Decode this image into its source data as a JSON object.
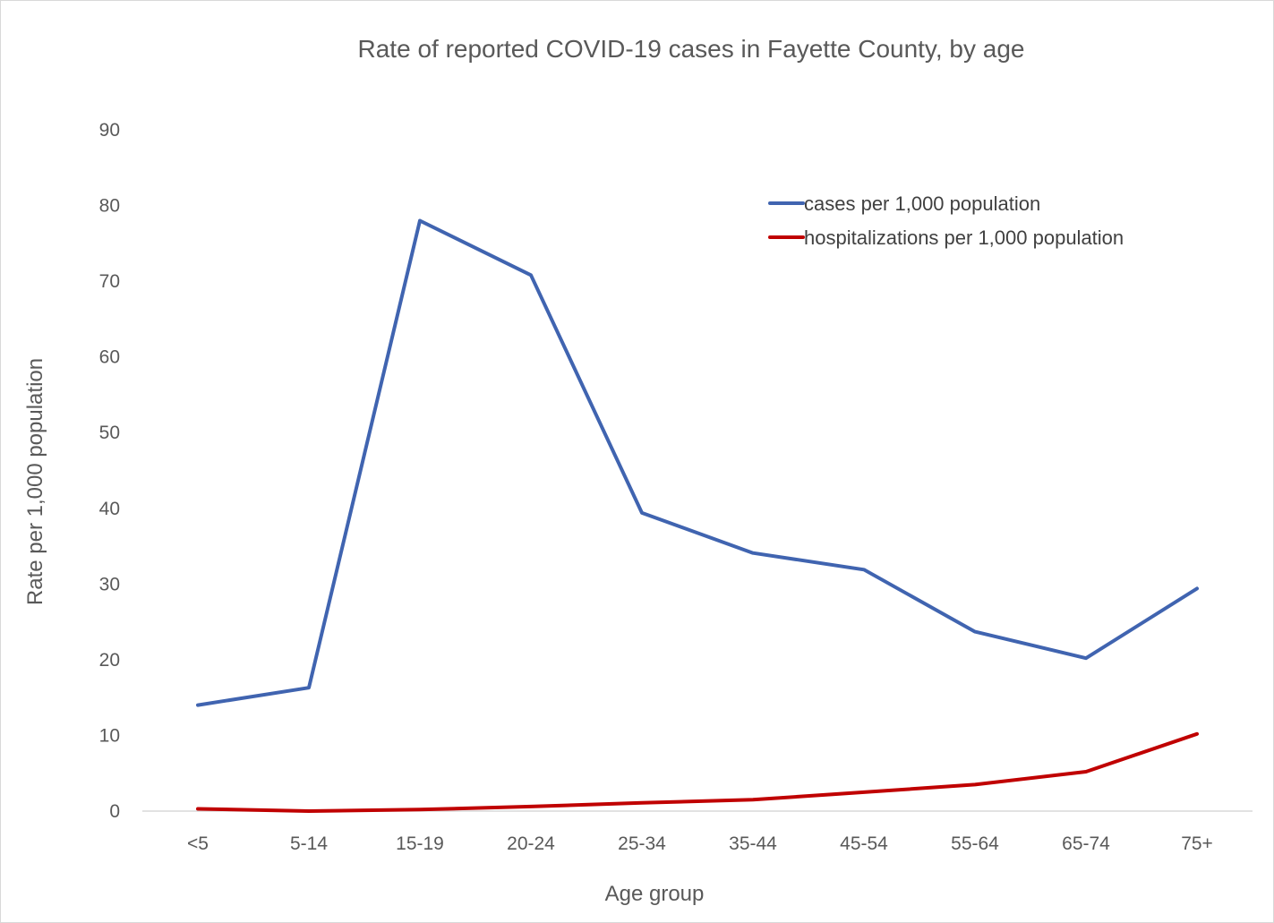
{
  "chart_data": {
    "type": "line",
    "title": "Rate of reported COVID-19 cases in Fayette County, by age",
    "xlabel": "Age group",
    "ylabel": "Rate per 1,000 population",
    "ylim": [
      0,
      90
    ],
    "yticks": [
      "0",
      "10",
      "20",
      "30",
      "40",
      "50",
      "60",
      "70",
      "80",
      "90"
    ],
    "grid": false,
    "legend_position": "top-right",
    "categories": [
      "<5",
      "5-14",
      "15-19",
      "20-24",
      "25-34",
      "35-44",
      "45-54",
      "55-64",
      "65-74",
      "75+"
    ],
    "series": [
      {
        "name": "cases per 1,000 population",
        "color": "#4064b0",
        "values": [
          14.0,
          16.3,
          78.0,
          70.8,
          39.4,
          34.1,
          31.9,
          23.7,
          20.2,
          29.4
        ]
      },
      {
        "name": "hospitalizations per 1,000 population",
        "color": "#c00000",
        "values": [
          0.3,
          0.0,
          0.2,
          0.6,
          1.1,
          1.5,
          2.5,
          3.5,
          5.2,
          10.2
        ]
      }
    ]
  }
}
